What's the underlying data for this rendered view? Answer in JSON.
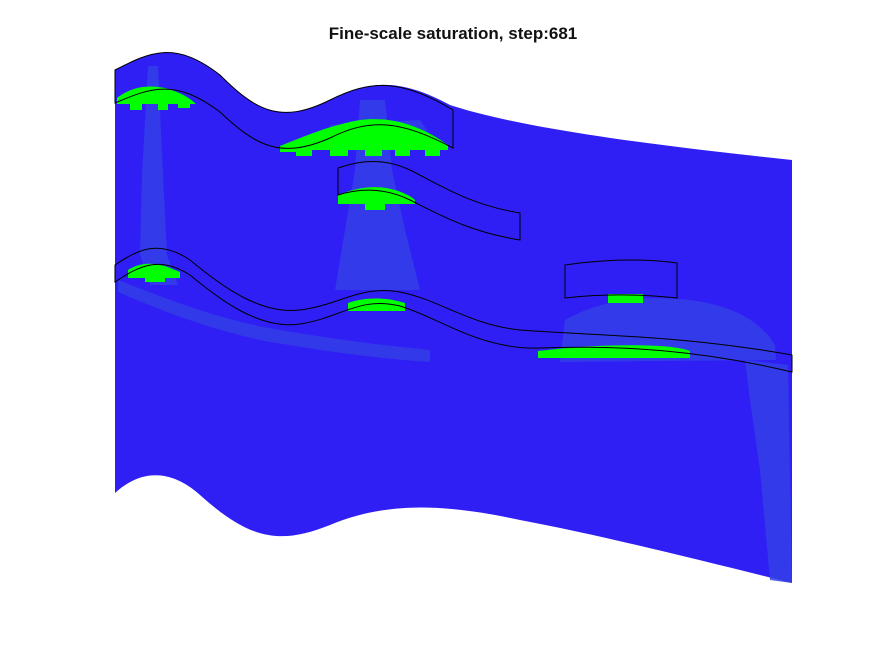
{
  "chart_data": {
    "type": "heatmap",
    "title": "Fine-scale saturation, step:681",
    "xlabel": "",
    "ylabel": "",
    "axes_visible": false,
    "grid": false,
    "legend": "none",
    "colors": {
      "background": "#ffffff",
      "water_phase": "#2f1ff5",
      "water_plume": "#3340e6",
      "gas_saturated": "#00ff00",
      "layer_outline": "#000000"
    },
    "layer_outlines_count": 4,
    "gas_accumulations_count": 6
  }
}
